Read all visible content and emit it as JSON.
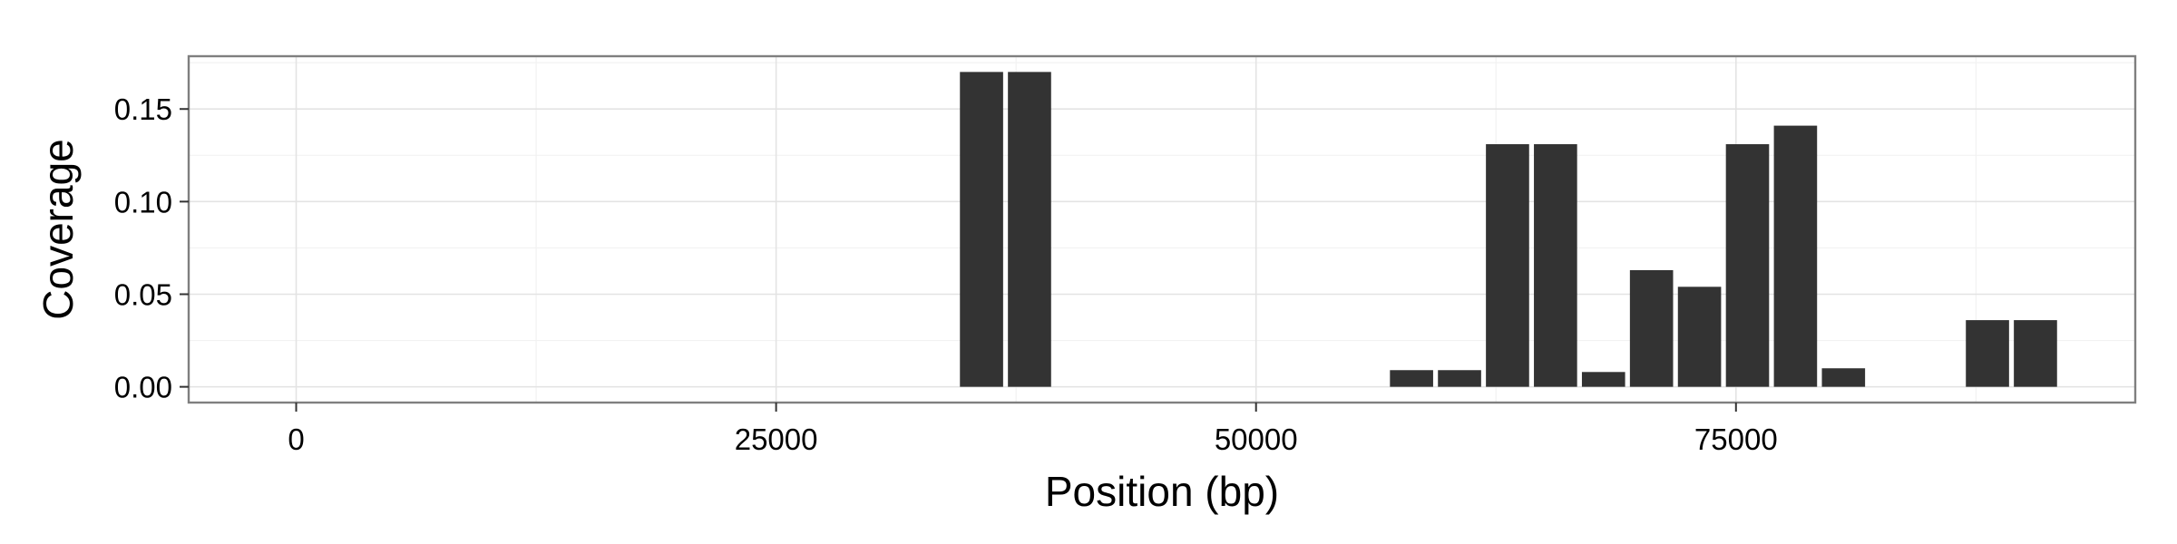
{
  "chart_data": {
    "type": "bar",
    "title": "",
    "xlabel": "Position (bp)",
    "ylabel": "Coverage",
    "xlim": [
      -5600,
      95800
    ],
    "ylim": [
      -0.0085,
      0.1785
    ],
    "x_ticks": [
      0,
      25000,
      50000,
      75000
    ],
    "x_tick_labels": [
      "0",
      "25000",
      "50000",
      "75000"
    ],
    "y_ticks": [
      0.0,
      0.05,
      0.1,
      0.15
    ],
    "y_tick_labels": [
      "0.00",
      "0.05",
      "0.10",
      "0.15"
    ],
    "grid": true,
    "bar_width": 2250,
    "bar_color": "#333333",
    "background_color": "#ffffff",
    "grid_color": "#e3e3e3",
    "x": [
      35700,
      38200,
      58100,
      60600,
      63100,
      65600,
      68100,
      70600,
      73100,
      75600,
      78100,
      80600,
      88100,
      90600
    ],
    "values": [
      0.17,
      0.17,
      0.009,
      0.009,
      0.131,
      0.131,
      0.008,
      0.063,
      0.054,
      0.131,
      0.141,
      0.01,
      0.036,
      0.036
    ]
  }
}
